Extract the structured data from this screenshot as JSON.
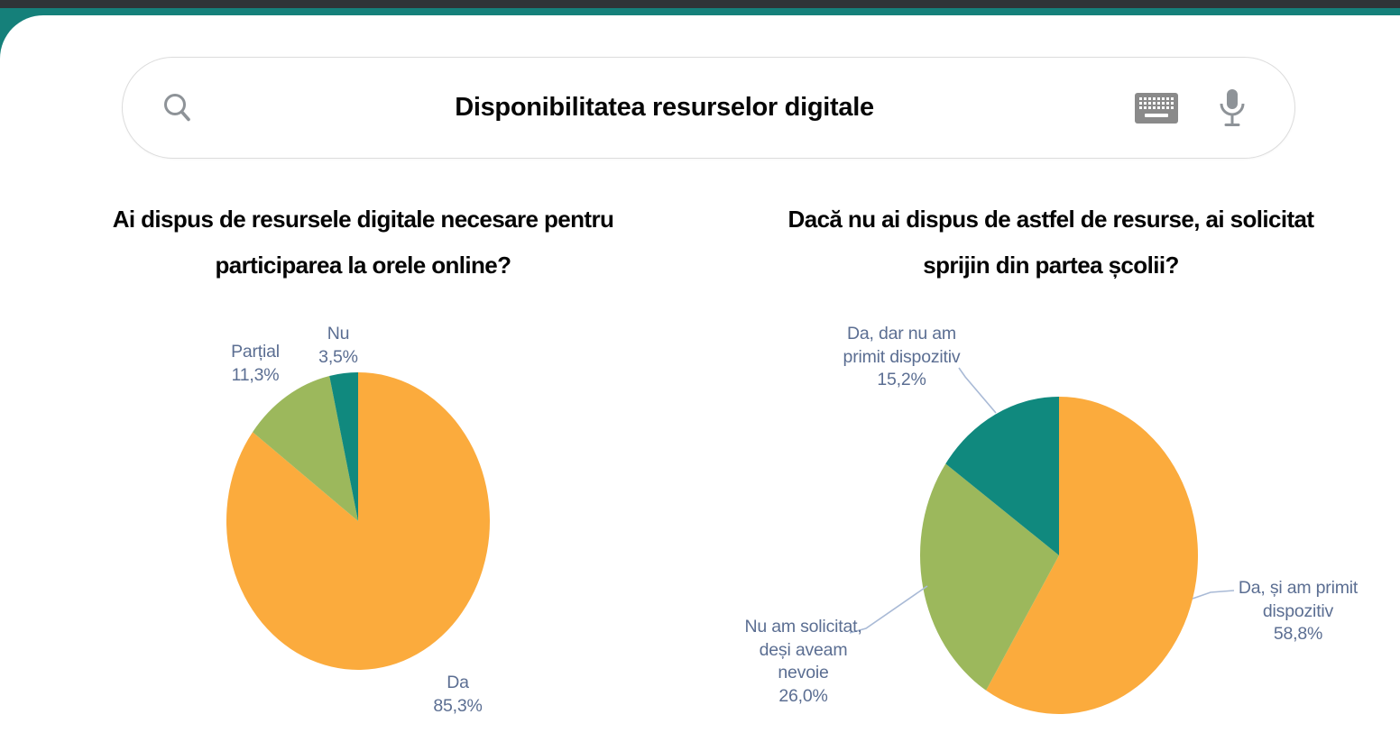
{
  "header": {
    "search_query": "Disponibilitatea resurselor digitale",
    "icons": [
      "search-icon",
      "keyboard-icon",
      "microphone-icon"
    ]
  },
  "colors": {
    "accent_teal": "#15807a",
    "topbar_dark": "#2f3437",
    "slice_orange": "#fbab3d",
    "slice_green": "#9cb85c",
    "slice_teal": "#10897e",
    "label_text": "#5b6e92",
    "leader_line": "#a9bad6"
  },
  "chart_data": [
    {
      "type": "pie",
      "title": "Ai dispus de resursele digitale necesare pentru participarea la orele online?",
      "title_lines": [
        "Ai dispus de resursele digitale necesare pentru",
        "participarea la orele online?"
      ],
      "start_angle_deg": 0,
      "direction": "clockwise",
      "legend_position": "none",
      "labels_style": "outside",
      "slices": [
        {
          "label": "Da",
          "label_lines": [
            "Da"
          ],
          "value": 85.3,
          "display": "85,3%",
          "color": "#fbab3d"
        },
        {
          "label": "Parțial",
          "label_lines": [
            "Parțial"
          ],
          "value": 11.3,
          "display": "11,3%",
          "color": "#9cb85c"
        },
        {
          "label": "Nu",
          "label_lines": [
            "Nu"
          ],
          "value": 3.5,
          "display": "3,5%",
          "color": "#10897e"
        }
      ]
    },
    {
      "type": "pie",
      "title": "Dacă nu ai dispus de astfel de resurse, ai solicitat sprijin din partea școlii?",
      "title_lines": [
        "Dacă nu ai dispus de astfel de resurse, ai solicitat",
        "sprijin din partea școlii?"
      ],
      "start_angle_deg": 0,
      "direction": "clockwise",
      "legend_position": "none",
      "labels_style": "outside-with-leader-lines",
      "slices": [
        {
          "label": "Da, și am primit dispozitiv",
          "label_lines": [
            "Da, și am primit",
            "dispozitiv"
          ],
          "value": 58.8,
          "display": "58,8%",
          "color": "#fbab3d"
        },
        {
          "label": "Nu am solicitat, deși aveam nevoie",
          "label_lines": [
            "Nu am solicitat,",
            "deși aveam",
            "nevoie"
          ],
          "value": 26.0,
          "display": "26,0%",
          "color": "#9cb85c"
        },
        {
          "label": "Da, dar nu am primit dispozitiv",
          "label_lines": [
            "Da, dar nu am",
            "primit dispozitiv"
          ],
          "value": 15.2,
          "display": "15,2%",
          "color": "#10897e"
        }
      ]
    }
  ]
}
